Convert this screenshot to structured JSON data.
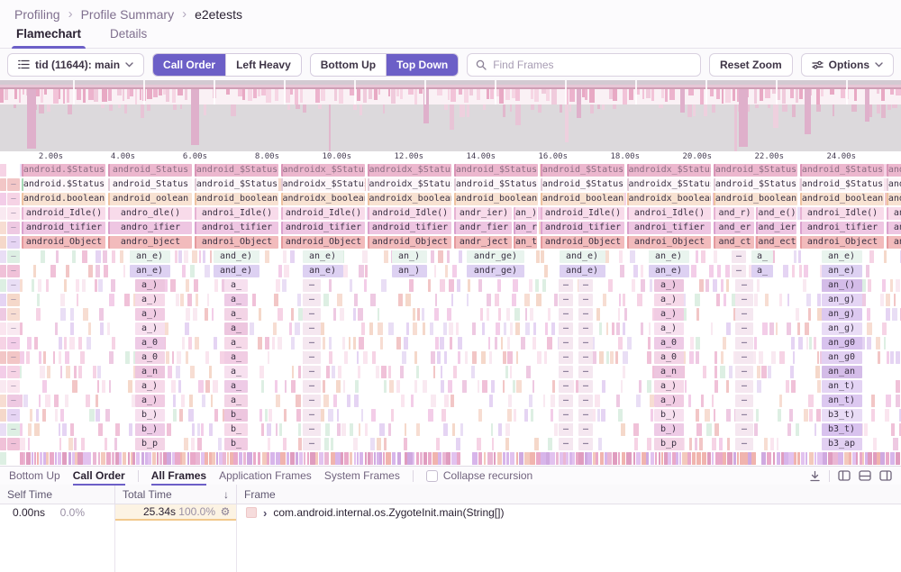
{
  "breadcrumb": {
    "items": [
      "Profiling",
      "Profile Summary",
      "e2etests"
    ],
    "separator": "›"
  },
  "tabs": {
    "items": [
      {
        "label": "Flamechart"
      },
      {
        "label": "Details"
      }
    ]
  },
  "toolbar": {
    "thread_label": "tid (11644): main",
    "call_order": "Call Order",
    "left_heavy": "Left Heavy",
    "bottom_up": "Bottom Up",
    "top_down": "Top Down",
    "search_placeholder": "Find Frames",
    "reset_zoom": "Reset Zoom",
    "options": "Options"
  },
  "axis": {
    "ticks": [
      "2.00s",
      "4.00s",
      "6.00s",
      "8.00s",
      "10.00s",
      "12.00s",
      "14.00s",
      "16.00s",
      "18.00s",
      "20.00s",
      "22.00s",
      "24.00s"
    ]
  },
  "flame": {
    "dash": "–",
    "row_colors": [
      "#ecb7ce",
      "#fdf6f9",
      "#f8e2d2",
      "#f8dbea",
      "#eec6e2",
      "#f2bbbc"
    ],
    "row_accents": [
      "#d995b7",
      "#e3cbd8",
      "#eec2a0",
      "#e7b3d3",
      "#d9a0cd",
      "#e59a9e"
    ],
    "mint": "#e9f4ee",
    "lavender": "#ddd1f2",
    "dash_pill": "#f5e7f0",
    "dash_pill_purple": "#eadef5",
    "pink_pills": [
      "#f6d9e9",
      "#f1cce3",
      "#f7e0ef",
      "#eecbe6",
      "#f3d4e6",
      "#edc6df"
    ],
    "purple_pills": [
      "#e4d4f4",
      "#dcc8f0",
      "#e9dcf6",
      "#d8c2ee",
      "#e2d0f2",
      "#d4bce8"
    ],
    "slivers": [
      "#f6d3e5",
      "#f0c1d8",
      "#f3cde8",
      "#e5d4f3",
      "#f7ddd2",
      "#fae5ef",
      "#e9def5",
      "#f2c6c6",
      "#ddefe3",
      "#f9e9f1",
      "#eec9e2",
      "#f5d8ca"
    ],
    "dense": [
      "#e9a9c9",
      "#df9cbf",
      "#eab7d4",
      "#cfa9e0",
      "#f0b4ae",
      "#e2c2ef",
      "#f3c9bc",
      "#d7b5ea"
    ],
    "row_density": [
      0.18,
      0.28,
      0.3,
      0.28,
      0.3,
      0.3,
      0.55,
      0.5,
      0.5,
      0.45,
      0.42,
      0.45,
      0.42,
      0.45,
      0.45,
      0.42,
      0.45,
      0.45,
      0.5,
      0.45,
      0.97
    ],
    "groups": [
      {
        "tone": "pink",
        "labels": [
          "android.$Status",
          "android.boolean",
          "android_Idle()",
          "android_tifier",
          "android_Object",
          "",
          "",
          "",
          "",
          "",
          "",
          "",
          "",
          "",
          "",
          "",
          "",
          "",
          ""
        ]
      },
      {
        "tone": "pink",
        "labels": [
          "android_Status",
          "android_oolean",
          "andro_dle()",
          "andro_ifier",
          "andro_bject",
          "an_e)",
          "an_e)",
          "a_)",
          "a_)",
          "a_)",
          "a_)",
          "a_0",
          "a_0",
          "a_n",
          "a_)",
          "a_)",
          "b_)",
          "b_)",
          "b_p"
        ]
      },
      {
        "tone": "pink",
        "labels": [
          "android_$Status",
          "android_boolean",
          "androi_Idle()",
          "androi_tifier",
          "androi_Object",
          "and_e)",
          "and_e)",
          "a_",
          "a_",
          "a_",
          "a_",
          "a_",
          "a_",
          "a_",
          "a_",
          "a_",
          "b_",
          "b_",
          "b_"
        ]
      },
      {
        "tone": "pink",
        "labels": [
          "androidx_$Status",
          "androidx_boolean",
          "android_Idle()",
          "android_tifier",
          "android_Object",
          "an_e)",
          "an_e)",
          "–",
          "–",
          "–",
          "–",
          "–",
          "–",
          "–",
          "–",
          "–",
          "–",
          "–",
          "–"
        ]
      },
      {
        "tone": "pink",
        "labels": [
          "androidx_$Status",
          "androidx_boolean",
          "android_Idle()",
          "android_tifier",
          "android_Object",
          "an_)",
          "an_)",
          "",
          "",
          "",
          "",
          "",
          "",
          "",
          "",
          "",
          "",
          "",
          ""
        ]
      },
      {
        "tone": "pink",
        "labels": [
          "android_$Status",
          "android_boolean",
          "andr_ier)|an_)",
          "andr_fier|an_r",
          "andr_ject|an_t",
          "andr_ge)",
          "andr_ge)",
          "",
          "",
          "",
          "",
          "",
          "",
          "",
          "",
          "",
          "",
          "",
          ""
        ]
      },
      {
        "tone": "pink",
        "labels": [
          "android_$Status",
          "android_boolean",
          "android_Idle()",
          "android_tifier",
          "android_Object",
          "and_e)",
          "and_e)",
          "–|–",
          "–|–",
          "–|–",
          "–|–",
          "–|–",
          "–|–",
          "–|–",
          "–|–",
          "–|–",
          "–|–",
          "–|–",
          "–|–"
        ]
      },
      {
        "tone": "pink",
        "labels": [
          "androidx_$Status",
          "androidx_boolean",
          "androi_Idle()",
          "androi_tifier",
          "androi_Object",
          "an_e)",
          "an_e)",
          "a_)",
          "a_)",
          "a_)",
          "a_)",
          "a_0",
          "a_0",
          "a_n",
          "a_)",
          "a_)",
          "b_)",
          "b_)",
          "b_p"
        ]
      },
      {
        "tone": "pink",
        "labels": [
          "android_$Status",
          "android_boolean",
          "and_r)|and_e()",
          "and_er|and_ier",
          "and_ct|and_ect",
          "–|a_",
          "–|a_",
          "–",
          "–",
          "–",
          "–",
          "–",
          "–",
          "–",
          "–",
          "–",
          "–",
          "–",
          "–"
        ]
      },
      {
        "tone": "purple",
        "labels": [
          "android_$Status",
          "android_boolean",
          "androi_Idle()",
          "androi_tifier",
          "androi_Object",
          "an_e)",
          "an_e)",
          "an_()",
          "an_g)",
          "an_g)",
          "an_g)",
          "an_g0",
          "an_g0",
          "an_an",
          "an_t)",
          "an_t)",
          "b3_t)",
          "b3_t)",
          "b3_ap"
        ]
      },
      {
        "tone": "purple",
        "labels": [
          "android_$Status",
          "android_boolean",
          "androi_Idle()",
          "androi_tifier",
          "androi_Object",
          "an_e)",
          "an_e)",
          "an_()",
          "an_g)",
          "an_g)",
          "an_g)",
          "an_g0",
          "an_g0",
          "an_an",
          "an_t)",
          "an_t)",
          "b3_t)",
          "b3_t)",
          "b3_ap"
        ]
      }
    ]
  },
  "footer": {
    "view_tabs": [
      {
        "label": "Bottom Up",
        "active": false
      },
      {
        "label": "Call Order",
        "active": true
      }
    ],
    "frame_tabs": [
      {
        "label": "All Frames",
        "active": true
      },
      {
        "label": "Application Frames",
        "active": false
      },
      {
        "label": "System Frames",
        "active": false
      }
    ],
    "collapse_label": "Collapse recursion"
  },
  "table": {
    "headers": {
      "self": "Self Time",
      "total": "Total Time",
      "frame": "Frame"
    },
    "sort_icon": "↓",
    "row": {
      "self": "0.00ns",
      "self_pct": "0.0%",
      "total": "25.34s",
      "total_pct": "100.0%",
      "gear": "⚙",
      "expand": "›",
      "frame": "com.android.internal.os.ZygoteInit.main(String[])"
    }
  },
  "colors": {
    "accent": "#6c5fc7",
    "border": "#e0dce5",
    "page_bg": "#fcfbfd",
    "total_heat_bg": "#fcf3e3",
    "total_heat_border": "#f2c98c"
  }
}
